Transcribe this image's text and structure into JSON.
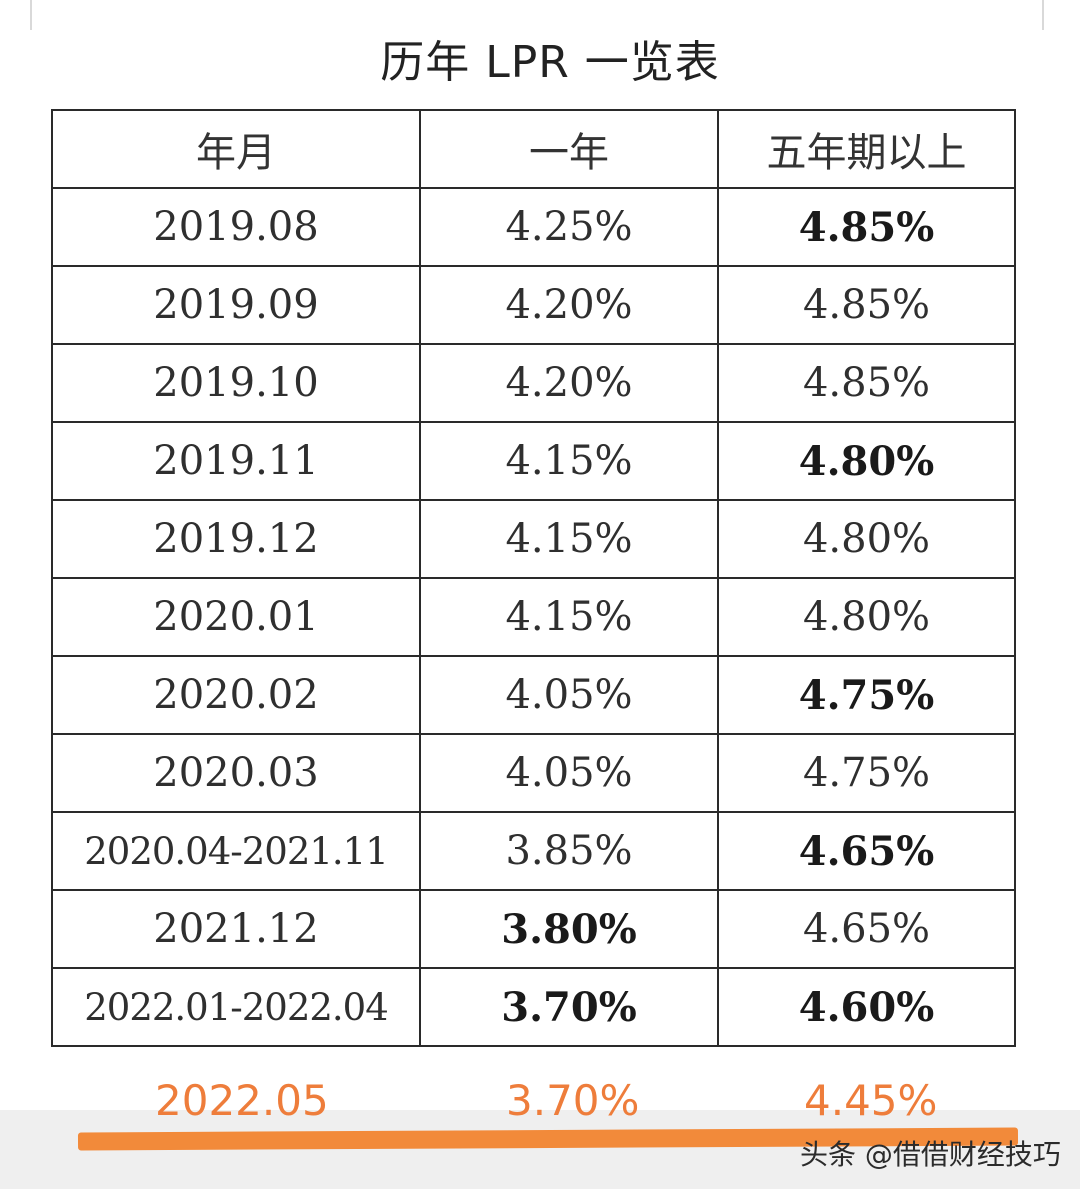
{
  "title": "历年 LPR 一览表",
  "headers": [
    "年月",
    "一年",
    "五年期以上"
  ],
  "rows": [
    {
      "date": "2019.08",
      "one_year": "4.25%",
      "five_year": "4.85%",
      "bold_one": false,
      "bold_five": true
    },
    {
      "date": "2019.09",
      "one_year": "4.20%",
      "five_year": "4.85%",
      "bold_one": false,
      "bold_five": false
    },
    {
      "date": "2019.10",
      "one_year": "4.20%",
      "five_year": "4.85%",
      "bold_one": false,
      "bold_five": false
    },
    {
      "date": "2019.11",
      "one_year": "4.15%",
      "five_year": "4.80%",
      "bold_one": false,
      "bold_five": true
    },
    {
      "date": "2019.12",
      "one_year": "4.15%",
      "five_year": "4.80%",
      "bold_one": false,
      "bold_five": false
    },
    {
      "date": "2020.01",
      "one_year": "4.15%",
      "five_year": "4.80%",
      "bold_one": false,
      "bold_five": false
    },
    {
      "date": "2020.02",
      "one_year": "4.05%",
      "five_year": "4.75%",
      "bold_one": false,
      "bold_five": true
    },
    {
      "date": "2020.03",
      "one_year": "4.05%",
      "five_year": "4.75%",
      "bold_one": false,
      "bold_five": false
    },
    {
      "date": "2020.04-2021.11",
      "one_year": "3.85%",
      "five_year": "4.65%",
      "bold_one": false,
      "bold_five": true
    },
    {
      "date": "2021.12",
      "one_year": "3.80%",
      "five_year": "4.65%",
      "bold_one": true,
      "bold_five": false
    },
    {
      "date": "2022.01-2022.04",
      "one_year": "3.70%",
      "five_year": "4.60%",
      "bold_one": true,
      "bold_five": true
    }
  ],
  "new_row": {
    "date": "2022.05",
    "one_year": "3.70%",
    "five_year": "4.45%",
    "color": "#ee7d3b"
  },
  "watermark": "头条 @借借财经技巧"
}
